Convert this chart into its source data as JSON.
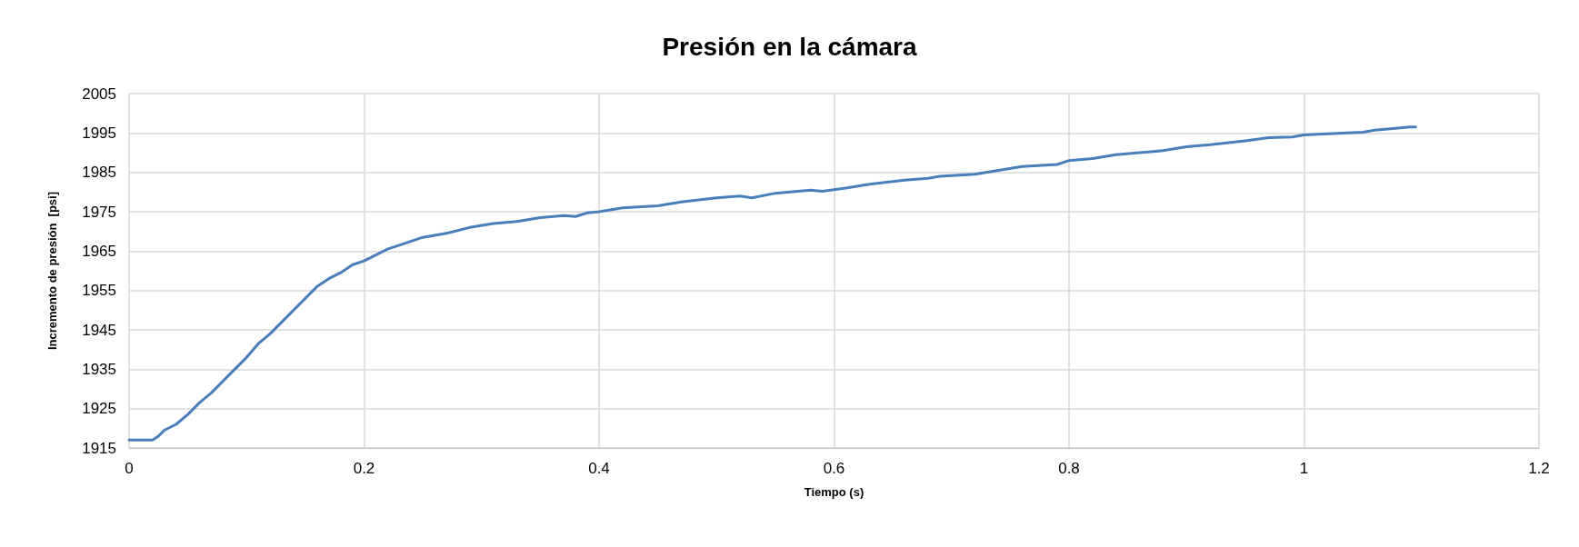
{
  "chart_data": {
    "type": "line",
    "title": "Presión en la cámara",
    "xlabel": "Tiempo (s)",
    "ylabel": "Incremento de presión  [psi]",
    "x": [
      0,
      0.02,
      0.025,
      0.03,
      0.04,
      0.05,
      0.06,
      0.07,
      0.08,
      0.09,
      0.1,
      0.11,
      0.12,
      0.13,
      0.14,
      0.15,
      0.16,
      0.17,
      0.18,
      0.19,
      0.2,
      0.21,
      0.22,
      0.23,
      0.25,
      0.27,
      0.29,
      0.31,
      0.33,
      0.35,
      0.37,
      0.38,
      0.39,
      0.4,
      0.42,
      0.45,
      0.47,
      0.5,
      0.52,
      0.53,
      0.55,
      0.58,
      0.59,
      0.61,
      0.63,
      0.66,
      0.68,
      0.69,
      0.7,
      0.72,
      0.74,
      0.76,
      0.79,
      0.8,
      0.82,
      0.84,
      0.86,
      0.88,
      0.9,
      0.92,
      0.95,
      0.97,
      0.99,
      1.0,
      1.02,
      1.05,
      1.06,
      1.09,
      1.095
    ],
    "series": [
      {
        "color": "#4a7ebb",
        "values": [
          1917,
          1917,
          1918,
          1919.5,
          1921,
          1923.5,
          1926.5,
          1929,
          1932,
          1935,
          1938,
          1941.5,
          1944,
          1947,
          1950,
          1953,
          1956,
          1958,
          1959.5,
          1961.5,
          1962.5,
          1964,
          1965.5,
          1966.5,
          1968.5,
          1969.5,
          1971,
          1972,
          1972.5,
          1973.5,
          1974,
          1973.8,
          1974.7,
          1975,
          1976,
          1976.5,
          1977.5,
          1978.5,
          1979,
          1978.5,
          1979.7,
          1980.5,
          1980.2,
          1981,
          1982,
          1983,
          1983.5,
          1984,
          1984.2,
          1984.5,
          1985.5,
          1986.5,
          1987,
          1988,
          1988.5,
          1989.5,
          1990,
          1990.5,
          1991.5,
          1992,
          1993,
          1993.8,
          1994,
          1994.5,
          1994.8,
          1995.2,
          1995.7,
          1996.5,
          1996.5
        ]
      }
    ],
    "xlim": [
      0,
      1.2
    ],
    "xticks": [
      0,
      0.2,
      0.4,
      0.6,
      0.8,
      1,
      1.2
    ],
    "ylim": [
      1915,
      2005
    ],
    "yticks": [
      1915,
      1925,
      1935,
      1945,
      1955,
      1965,
      1975,
      1985,
      1995,
      2005
    ],
    "grid": true,
    "marker": "none",
    "line_style": "solid"
  }
}
